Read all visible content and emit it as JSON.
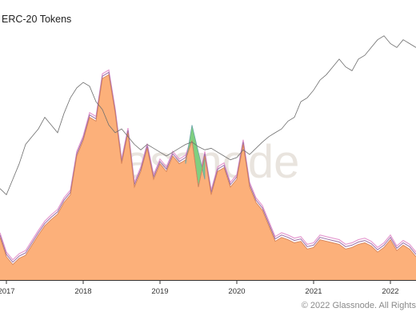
{
  "title": "ERC-20 Tokens",
  "copyright": "© 2022 Glassnode. All Rights",
  "watermark": "glassnode",
  "colors": {
    "area_fill": "#fcb07a",
    "area_stroke": "#d6845a",
    "top_stroke": "#9b6fa6",
    "green_band": "#7fcf7f",
    "teal_band": "#6aa5a8",
    "pink_band": "#e59ad0",
    "price_line": "#6e6e6e",
    "axis": "#333333"
  },
  "chart_data": {
    "type": "area",
    "title": "ERC-20 Tokens",
    "xlabel": "",
    "ylabel": "",
    "x_ticks": [
      "2017",
      "2018",
      "2019",
      "2020",
      "2021",
      "2022"
    ],
    "x_range": [
      "2016-12-01",
      "2022-05-31"
    ],
    "grid": false,
    "legend": "none",
    "series": [
      {
        "kind": "area",
        "x": [
          "2016-12",
          "2017-01",
          "2017-02",
          "2017-03",
          "2017-04",
          "2017-05",
          "2017-06",
          "2017-07",
          "2017-08",
          "2017-09",
          "2017-10",
          "2017-11",
          "2017-12",
          "2018-01",
          "2018-02",
          "2018-03",
          "2018-04",
          "2018-05",
          "2018-06",
          "2018-07",
          "2018-08",
          "2018-09",
          "2018-10",
          "2018-11",
          "2018-12",
          "2019-01",
          "2019-02",
          "2019-03",
          "2019-04",
          "2019-05",
          "2019-06",
          "2019-07",
          "2019-08",
          "2019-09",
          "2019-10",
          "2019-11",
          "2019-12",
          "2020-01",
          "2020-02",
          "2020-03",
          "2020-04",
          "2020-05",
          "2020-06",
          "2020-07",
          "2020-08",
          "2020-09",
          "2020-10",
          "2020-11",
          "2020-12",
          "2021-01",
          "2021-02",
          "2021-03",
          "2021-04",
          "2021-05",
          "2021-06",
          "2021-07",
          "2021-08",
          "2021-09",
          "2021-10",
          "2021-11",
          "2021-12",
          "2022-01",
          "2022-02",
          "2022-03",
          "2022-04",
          "2022-05"
        ],
        "values": [
          55,
          30,
          20,
          28,
          32,
          45,
          58,
          70,
          78,
          85,
          100,
          110,
          160,
          180,
          210,
          205,
          260,
          265,
          215,
          150,
          190,
          120,
          140,
          170,
          130,
          150,
          140,
          160,
          150,
          155,
          180,
          120,
          160,
          110,
          140,
          145,
          120,
          130,
          175,
          120,
          100,
          90,
          70,
          50,
          55,
          52,
          48,
          50,
          40,
          42,
          52,
          50,
          48,
          46,
          40,
          42,
          46,
          48,
          44,
          36,
          42,
          52,
          38,
          45,
          40,
          30
        ]
      },
      {
        "kind": "band",
        "name_color": "green",
        "x": [
          "2019-05",
          "2019-06",
          "2019-07",
          "2019-08"
        ],
        "values": [
          150,
          200,
          165,
          130
        ]
      },
      {
        "kind": "line",
        "x": [
          "2016-12",
          "2017-01",
          "2017-02",
          "2017-03",
          "2017-04",
          "2017-05",
          "2017-06",
          "2017-07",
          "2017-08",
          "2017-09",
          "2017-10",
          "2017-11",
          "2017-12",
          "2018-01",
          "2018-02",
          "2018-03",
          "2018-04",
          "2018-05",
          "2018-06",
          "2018-07",
          "2018-08",
          "2018-09",
          "2018-10",
          "2018-11",
          "2018-12",
          "2019-01",
          "2019-02",
          "2019-03",
          "2019-04",
          "2019-05",
          "2019-06",
          "2019-07",
          "2019-08",
          "2019-09",
          "2019-10",
          "2019-11",
          "2019-12",
          "2020-01",
          "2020-02",
          "2020-03",
          "2020-04",
          "2020-05",
          "2020-06",
          "2020-07",
          "2020-08",
          "2020-09",
          "2020-10",
          "2020-11",
          "2020-12",
          "2021-01",
          "2021-02",
          "2021-03",
          "2021-04",
          "2021-05",
          "2021-06",
          "2021-07",
          "2021-08",
          "2021-09",
          "2021-10",
          "2021-11",
          "2021-12",
          "2022-01",
          "2022-02",
          "2022-03",
          "2022-04",
          "2022-05"
        ],
        "values": [
          118,
          110,
          130,
          150,
          175,
          185,
          195,
          210,
          200,
          190,
          215,
          235,
          248,
          255,
          250,
          230,
          220,
          200,
          190,
          195,
          185,
          175,
          168,
          175,
          170,
          165,
          160,
          165,
          170,
          175,
          178,
          172,
          168,
          170,
          165,
          160,
          155,
          158,
          168,
          162,
          170,
          178,
          185,
          190,
          195,
          205,
          210,
          230,
          235,
          245,
          258,
          265,
          275,
          285,
          275,
          270,
          285,
          290,
          300,
          310,
          315,
          305,
          300,
          310,
          305,
          300
        ]
      }
    ]
  }
}
